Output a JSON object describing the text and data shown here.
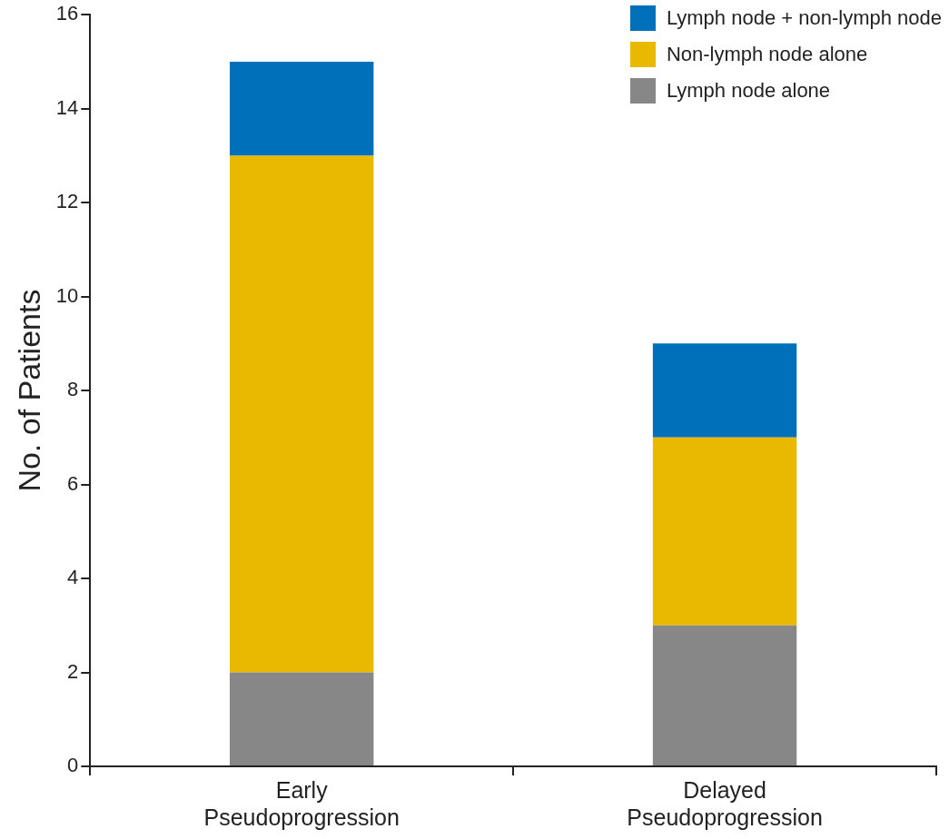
{
  "chart_data": {
    "type": "bar",
    "stacked": true,
    "ylabel": "No. of Patients",
    "categories": [
      "Early Pseudoprogression",
      "Delayed Pseudoprogression"
    ],
    "series": [
      {
        "name": "Lymph node alone",
        "color": "#878787",
        "values": [
          2,
          3
        ]
      },
      {
        "name": "Non-lymph node alone",
        "color": "#e8b900",
        "values": [
          11,
          4
        ]
      },
      {
        "name": "Lymph node + non-lymph node",
        "color": "#0070bb",
        "values": [
          2,
          2
        ]
      }
    ],
    "ylim": [
      0,
      16
    ],
    "yticks": [
      0,
      2,
      4,
      6,
      8,
      10,
      12,
      14,
      16
    ],
    "grid": false,
    "legend": "top right"
  }
}
